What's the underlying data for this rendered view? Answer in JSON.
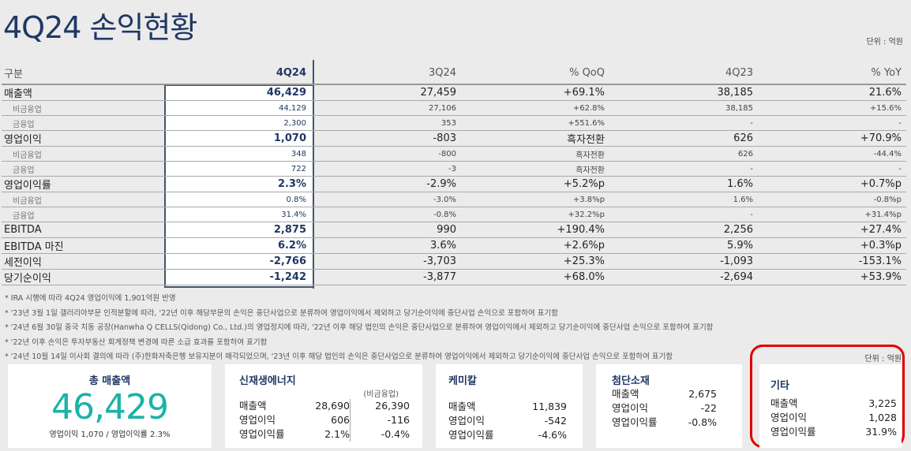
{
  "title": "4Q24 손익현황",
  "unit": "단위 : 억원",
  "table": {
    "headers": [
      "구분",
      "4Q24",
      "3Q24",
      "% QoQ",
      "4Q23",
      "% YoY"
    ],
    "rows": [
      {
        "type": "m",
        "cells": [
          "매출액",
          "46,429",
          "27,459",
          "+69.1%",
          "38,185",
          "21.6%"
        ]
      },
      {
        "type": "s",
        "cells": [
          "비금융업",
          "44,129",
          "27,106",
          "+62.8%",
          "38,185",
          "+15.6%"
        ]
      },
      {
        "type": "s",
        "cells": [
          "금융업",
          "2,300",
          "353",
          "+551.6%",
          "-",
          "-"
        ]
      },
      {
        "type": "m",
        "cells": [
          "영업이익",
          "1,070",
          "-803",
          "흑자전환",
          "626",
          "+70.9%"
        ]
      },
      {
        "type": "s",
        "cells": [
          "비금융업",
          "348",
          "-800",
          "흑자전환",
          "626",
          "-44.4%"
        ]
      },
      {
        "type": "s",
        "cells": [
          "금융업",
          "722",
          "-3",
          "흑자전환",
          "-",
          "-"
        ]
      },
      {
        "type": "m",
        "cells": [
          "영업이익률",
          "2.3%",
          "-2.9%",
          "+5.2%p",
          "1.6%",
          "+0.7%p"
        ]
      },
      {
        "type": "s",
        "cells": [
          "비금융업",
          "0.8%",
          "-3.0%",
          "+3.8%p",
          "1.6%",
          "-0.8%p"
        ]
      },
      {
        "type": "s",
        "cells": [
          "금융업",
          "31.4%",
          "-0.8%",
          "+32.2%p",
          "-",
          "+31.4%p"
        ]
      },
      {
        "type": "m",
        "cells": [
          "EBITDA",
          "2,875",
          "990",
          "+190.4%",
          "2,256",
          "+27.4%"
        ]
      },
      {
        "type": "m",
        "cells": [
          "EBITDA 마진",
          "6.2%",
          "3.6%",
          "+2.6%p",
          "5.9%",
          "+0.3%p"
        ]
      },
      {
        "type": "m",
        "cells": [
          "세전이익",
          "-2,766",
          "-3,703",
          "+25.3%",
          "-1,093",
          "-153.1%"
        ]
      },
      {
        "type": "m",
        "cells": [
          "당기순이익",
          "-1,242",
          "-3,877",
          "+68.0%",
          "-2,694",
          "+53.9%"
        ]
      }
    ]
  },
  "notes": [
    "* IRA 시행에 따라 4Q24 영업이익에 1,901억원 반영",
    "* '23년 3월 1일 갤러리아부문 인적분할에 따라, '22년 이후 해당부문의 손익은 중단사업으로 분류하여 영업이익에서 제외하고 당기순이익에 중단사업 손익으로 포함하여 표기함",
    "* '24년 6월 30일 중국 치동 공장(Hanwha Q CELLS(Qidong) Co., Ltd.)의 영업정지에 따라, '22년 이후 해당 법인의 손익은 중단사업으로 분류하여 영업이익에서 제외하고 당기순이익에 중단사업 손익으로 포함하여 표기함",
    "* '22년 이후 손익은 투자부동산 회계정책 변경에 따른 소급 효과를 포함하여 표기함",
    "* '24년 10월 14일 이사회 결의에 따라 (주)한화저축은행 보유지분이 매각되었으며, '23년 이후 해당 법인의 손익은 중단사업으로 분류하여 영업이익에서 제외하고 당기순이익에 중단사업 손익으로 포함하여 표기함"
  ],
  "cards": {
    "unit": "단위 : 억원",
    "total": {
      "title": "총 매출액",
      "value": "46,429",
      "sub": "영업이익 1,070 / 영업이익률 2.3%"
    },
    "renewable": {
      "title": "신재생에너지",
      "sub_header": "(비금융업)",
      "rows": [
        [
          "매출액",
          "28,690",
          "26,390"
        ],
        [
          "영업이익",
          "606",
          "-116"
        ],
        [
          "영업이익률",
          "2.1%",
          "-0.4%"
        ]
      ]
    },
    "chemical": {
      "title": "케미칼",
      "rows": [
        [
          "매출액",
          "11,839"
        ],
        [
          "영업이익",
          "-542"
        ],
        [
          "영업이익률",
          "-4.6%"
        ]
      ]
    },
    "advanced": {
      "title": "첨단소재",
      "rows": [
        [
          "매출액",
          "2,675"
        ],
        [
          "영업이익",
          "-22"
        ],
        [
          "영업이익률",
          "-0.8%"
        ]
      ]
    },
    "other": {
      "title": "기타",
      "rows": [
        [
          "매출액",
          "3,225"
        ],
        [
          "영업이익",
          "1,028"
        ],
        [
          "영업이익률",
          "31.9%"
        ]
      ]
    }
  },
  "colors": {
    "navy": "#1f3864",
    "teal": "#1ab3a6",
    "highlight": "#e00000"
  }
}
